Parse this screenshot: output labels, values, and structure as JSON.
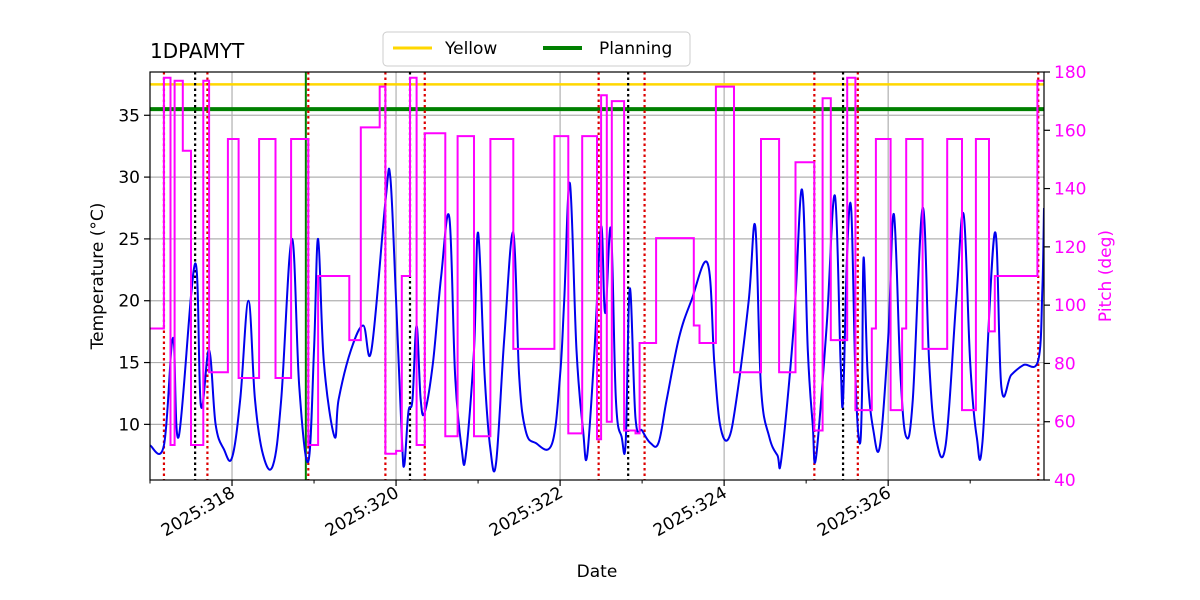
{
  "chart_data": {
    "type": "line",
    "title": "1DPAMYT",
    "xlabel": "Date",
    "ylabel_left": "Temperature ($^\\circ$C)",
    "ylabel_left_display": "Temperature (°C)",
    "ylabel_right": "Pitch (deg)",
    "x_range_days": [
      317.0,
      327.9
    ],
    "ylim_left": [
      5.5,
      38.5
    ],
    "ylim_right": [
      40,
      180
    ],
    "x_ticks": [
      {
        "value": 318,
        "label": "2025:318"
      },
      {
        "value": 320,
        "label": "2025:320"
      },
      {
        "value": 322,
        "label": "2025:322"
      },
      {
        "value": 324,
        "label": "2025:324"
      },
      {
        "value": 326,
        "label": "2025:326"
      }
    ],
    "y_ticks_left": [
      10,
      15,
      20,
      25,
      30,
      35
    ],
    "y_ticks_right": [
      40,
      60,
      80,
      100,
      120,
      140,
      160,
      180
    ],
    "grid": true,
    "legend": {
      "placement": "top-center",
      "entries": [
        {
          "name": "Yellow",
          "color": "#ffd700"
        },
        {
          "name": "Planning",
          "color": "#008000"
        }
      ]
    },
    "limits": [
      {
        "name": "Yellow",
        "value": 37.5,
        "color": "#ffd700"
      },
      {
        "name": "Planning",
        "value": 35.5,
        "color": "#008000"
      }
    ],
    "colors": {
      "temperature": "#0000ee",
      "pitch": "#ff00ff",
      "grid": "#b0b0b0",
      "red_markers": "#dd0000",
      "black_markers": "#000000",
      "green_marker": "#008000"
    },
    "vertical_markers": {
      "red_dotted": [
        317.17,
        317.7,
        318.93,
        319.87,
        320.35,
        322.47,
        323.03,
        325.1,
        325.63,
        327.83
      ],
      "black_dotted": [
        317.55,
        320.17,
        322.83,
        325.45
      ],
      "green_solid": [
        318.9
      ]
    },
    "temperature_series": [
      [
        317.0,
        8.3
      ],
      [
        317.17,
        8.3
      ],
      [
        317.28,
        17.0
      ],
      [
        317.35,
        9.0
      ],
      [
        317.55,
        23.0
      ],
      [
        317.62,
        11.5
      ],
      [
        317.72,
        16.0
      ],
      [
        317.8,
        10.0
      ],
      [
        317.9,
        8.0
      ],
      [
        318.0,
        7.3
      ],
      [
        318.1,
        12.0
      ],
      [
        318.2,
        20.0
      ],
      [
        318.28,
        12.0
      ],
      [
        318.38,
        7.5
      ],
      [
        318.5,
        6.7
      ],
      [
        318.6,
        12.0
      ],
      [
        318.73,
        25.0
      ],
      [
        318.82,
        13.0
      ],
      [
        318.93,
        7.0
      ],
      [
        319.0,
        16.0
      ],
      [
        319.05,
        25.0
      ],
      [
        319.12,
        15.0
      ],
      [
        319.25,
        9.0
      ],
      [
        319.3,
        12.0
      ],
      [
        319.45,
        16.0
      ],
      [
        319.6,
        18.0
      ],
      [
        319.7,
        16.0
      ],
      [
        319.87,
        28.0
      ],
      [
        319.93,
        30.0
      ],
      [
        320.0,
        20.0
      ],
      [
        320.07,
        9.0
      ],
      [
        320.1,
        6.7
      ],
      [
        320.15,
        11.0
      ],
      [
        320.2,
        12.0
      ],
      [
        320.25,
        18.0
      ],
      [
        320.3,
        12.0
      ],
      [
        320.35,
        11.0
      ],
      [
        320.45,
        15.0
      ],
      [
        320.55,
        22.0
      ],
      [
        320.65,
        26.7
      ],
      [
        320.72,
        14.0
      ],
      [
        320.8,
        8.0
      ],
      [
        320.85,
        7.5
      ],
      [
        320.95,
        16.0
      ],
      [
        321.0,
        25.5
      ],
      [
        321.08,
        14.0
      ],
      [
        321.15,
        8.0
      ],
      [
        321.22,
        6.9
      ],
      [
        321.32,
        17.0
      ],
      [
        321.43,
        25.5
      ],
      [
        321.5,
        14.0
      ],
      [
        321.58,
        9.5
      ],
      [
        321.7,
        8.5
      ],
      [
        321.9,
        8.4
      ],
      [
        322.0,
        14.0
      ],
      [
        322.05,
        20.0
      ],
      [
        322.12,
        29.5
      ],
      [
        322.2,
        16.0
      ],
      [
        322.28,
        9.5
      ],
      [
        322.33,
        7.5
      ],
      [
        322.42,
        16.0
      ],
      [
        322.5,
        26.0
      ],
      [
        322.55,
        19.0
      ],
      [
        322.62,
        25.8
      ],
      [
        322.68,
        12.0
      ],
      [
        322.75,
        9.0
      ],
      [
        322.8,
        8.6
      ],
      [
        322.85,
        21.0
      ],
      [
        322.92,
        10.5
      ],
      [
        323.0,
        9.5
      ],
      [
        323.1,
        8.5
      ],
      [
        323.2,
        8.5
      ],
      [
        323.3,
        12.0
      ],
      [
        323.45,
        17.0
      ],
      [
        323.6,
        20.0
      ],
      [
        323.8,
        23.0
      ],
      [
        323.88,
        15.0
      ],
      [
        323.95,
        10.0
      ],
      [
        324.05,
        8.8
      ],
      [
        324.15,
        12.0
      ],
      [
        324.3,
        20.0
      ],
      [
        324.38,
        26.0
      ],
      [
        324.45,
        13.0
      ],
      [
        324.55,
        9.0
      ],
      [
        324.65,
        7.5
      ],
      [
        324.7,
        7.3
      ],
      [
        324.85,
        18.0
      ],
      [
        324.95,
        29.0
      ],
      [
        325.02,
        16.0
      ],
      [
        325.08,
        10.0
      ],
      [
        325.12,
        7.3
      ],
      [
        325.25,
        18.0
      ],
      [
        325.35,
        28.5
      ],
      [
        325.42,
        15.0
      ],
      [
        325.45,
        12.0
      ],
      [
        325.5,
        24.0
      ],
      [
        325.55,
        27.3
      ],
      [
        325.6,
        14.0
      ],
      [
        325.65,
        8.5
      ],
      [
        325.68,
        12.0
      ],
      [
        325.7,
        23.5
      ],
      [
        325.75,
        14.0
      ],
      [
        325.82,
        9.5
      ],
      [
        325.9,
        8.3
      ],
      [
        326.0,
        17.0
      ],
      [
        326.07,
        27.0
      ],
      [
        326.15,
        14.0
      ],
      [
        326.22,
        9.0
      ],
      [
        326.3,
        12.0
      ],
      [
        326.42,
        27.5
      ],
      [
        326.5,
        15.0
      ],
      [
        326.58,
        9.0
      ],
      [
        326.7,
        8.3
      ],
      [
        326.83,
        20.0
      ],
      [
        326.92,
        27.0
      ],
      [
        327.0,
        15.0
      ],
      [
        327.08,
        9.0
      ],
      [
        327.15,
        8.6
      ],
      [
        327.3,
        25.5
      ],
      [
        327.38,
        13.0
      ],
      [
        327.5,
        14.0
      ],
      [
        327.65,
        14.8
      ],
      [
        327.83,
        15.2
      ],
      [
        327.88,
        21.0
      ],
      [
        327.9,
        27.5
      ]
    ],
    "pitch_series": [
      [
        317.0,
        92
      ],
      [
        317.17,
        92
      ],
      [
        317.17,
        178
      ],
      [
        317.25,
        178
      ],
      [
        317.25,
        52
      ],
      [
        317.3,
        52
      ],
      [
        317.3,
        177
      ],
      [
        317.4,
        177
      ],
      [
        317.4,
        153
      ],
      [
        317.5,
        153
      ],
      [
        317.5,
        52
      ],
      [
        317.65,
        52
      ],
      [
        317.65,
        177
      ],
      [
        317.72,
        177
      ],
      [
        317.72,
        77
      ],
      [
        317.95,
        77
      ],
      [
        317.95,
        157
      ],
      [
        318.08,
        157
      ],
      [
        318.08,
        75
      ],
      [
        318.33,
        75
      ],
      [
        318.33,
        157
      ],
      [
        318.53,
        157
      ],
      [
        318.53,
        75
      ],
      [
        318.72,
        75
      ],
      [
        318.72,
        157
      ],
      [
        318.93,
        157
      ],
      [
        318.93,
        52
      ],
      [
        319.05,
        52
      ],
      [
        319.05,
        110
      ],
      [
        319.43,
        110
      ],
      [
        319.43,
        88
      ],
      [
        319.57,
        88
      ],
      [
        319.57,
        161
      ],
      [
        319.8,
        161
      ],
      [
        319.8,
        175
      ],
      [
        319.87,
        175
      ],
      [
        319.87,
        49
      ],
      [
        320.0,
        49
      ],
      [
        320.0,
        50
      ],
      [
        320.07,
        50
      ],
      [
        320.07,
        110
      ],
      [
        320.17,
        110
      ],
      [
        320.17,
        178
      ],
      [
        320.25,
        178
      ],
      [
        320.25,
        52
      ],
      [
        320.35,
        52
      ],
      [
        320.35,
        159
      ],
      [
        320.6,
        159
      ],
      [
        320.6,
        55
      ],
      [
        320.75,
        55
      ],
      [
        320.75,
        158
      ],
      [
        320.95,
        158
      ],
      [
        320.95,
        55
      ],
      [
        321.15,
        55
      ],
      [
        321.15,
        157
      ],
      [
        321.43,
        157
      ],
      [
        321.43,
        85
      ],
      [
        321.93,
        85
      ],
      [
        321.93,
        158
      ],
      [
        322.1,
        158
      ],
      [
        322.1,
        56
      ],
      [
        322.27,
        56
      ],
      [
        322.27,
        158
      ],
      [
        322.45,
        158
      ],
      [
        322.45,
        54
      ],
      [
        322.5,
        54
      ],
      [
        322.5,
        172
      ],
      [
        322.57,
        172
      ],
      [
        322.57,
        60
      ],
      [
        322.63,
        60
      ],
      [
        322.63,
        170
      ],
      [
        322.78,
        170
      ],
      [
        322.78,
        57
      ],
      [
        322.92,
        57
      ],
      [
        322.92,
        56
      ],
      [
        322.97,
        56
      ],
      [
        322.97,
        87
      ],
      [
        323.17,
        87
      ],
      [
        323.17,
        123
      ],
      [
        323.63,
        123
      ],
      [
        323.63,
        93
      ],
      [
        323.7,
        93
      ],
      [
        323.7,
        87
      ],
      [
        323.9,
        87
      ],
      [
        323.9,
        175
      ],
      [
        324.12,
        175
      ],
      [
        324.12,
        77
      ],
      [
        324.45,
        77
      ],
      [
        324.45,
        157
      ],
      [
        324.67,
        157
      ],
      [
        324.67,
        77
      ],
      [
        324.87,
        77
      ],
      [
        324.87,
        149
      ],
      [
        325.1,
        149
      ],
      [
        325.1,
        57
      ],
      [
        325.2,
        57
      ],
      [
        325.2,
        171
      ],
      [
        325.3,
        171
      ],
      [
        325.3,
        88
      ],
      [
        325.5,
        88
      ],
      [
        325.5,
        178
      ],
      [
        325.6,
        178
      ],
      [
        325.6,
        64
      ],
      [
        325.8,
        64
      ],
      [
        325.8,
        92
      ],
      [
        325.85,
        92
      ],
      [
        325.85,
        157
      ],
      [
        326.03,
        157
      ],
      [
        326.03,
        64
      ],
      [
        326.17,
        64
      ],
      [
        326.17,
        92
      ],
      [
        326.22,
        92
      ],
      [
        326.22,
        157
      ],
      [
        326.42,
        157
      ],
      [
        326.42,
        85
      ],
      [
        326.72,
        85
      ],
      [
        326.72,
        157
      ],
      [
        326.9,
        157
      ],
      [
        326.9,
        64
      ],
      [
        327.07,
        64
      ],
      [
        327.07,
        157
      ],
      [
        327.23,
        157
      ],
      [
        327.23,
        91
      ],
      [
        327.3,
        91
      ],
      [
        327.3,
        110
      ],
      [
        327.82,
        110
      ],
      [
        327.82,
        177
      ],
      [
        327.9,
        177
      ]
    ]
  }
}
